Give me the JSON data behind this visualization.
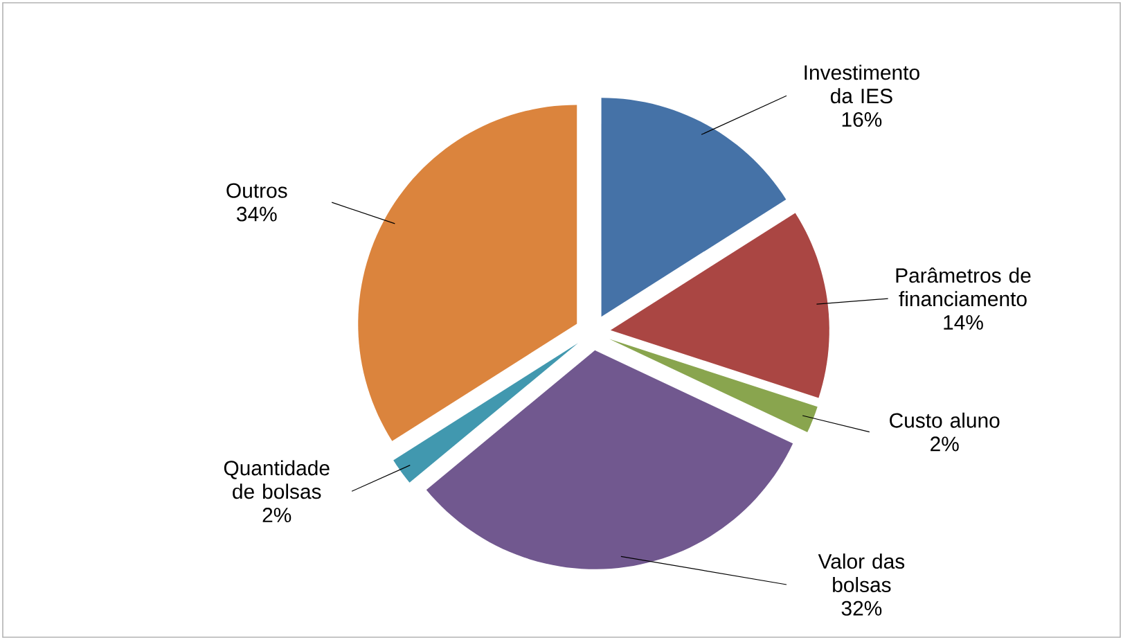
{
  "chart_data": {
    "type": "pie",
    "categories": [
      "Investimento da IES",
      "Parâmetros de financiamento",
      "Custo aluno",
      "Valor das bolsas",
      "Quantidade de bolsas",
      "Outros"
    ],
    "values": [
      16,
      14,
      2,
      32,
      2,
      34
    ],
    "value_labels": [
      "16%",
      "14%",
      "2%",
      "32%",
      "2%",
      "34%"
    ],
    "colors": [
      "#4572a7",
      "#aa4643",
      "#89a54e",
      "#71588f",
      "#4198af",
      "#db843d"
    ]
  }
}
